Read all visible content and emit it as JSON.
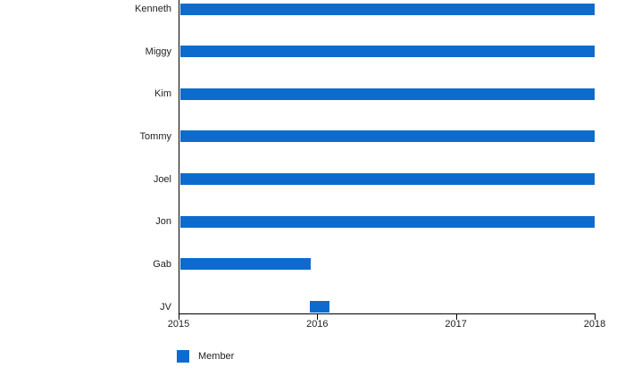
{
  "chart_data": {
    "type": "bar",
    "orientation": "horizontal",
    "title": "",
    "xlabel": "",
    "ylabel": "",
    "categories": [
      "Kenneth",
      "Miggy",
      "Kim",
      "Tommy",
      "Joel",
      "Jon",
      "Gab",
      "JV"
    ],
    "xlim": [
      2015,
      2018
    ],
    "x_ticks": [
      "2015",
      "2016",
      "2017",
      "2018"
    ],
    "grid": false,
    "legend_position": "bottom-left",
    "bar_color": "#0d6bcd",
    "axis_color": "#000000",
    "series": [
      {
        "name": "Member",
        "color": "#0d6bcd",
        "ranges": [
          {
            "member": "Kenneth",
            "start": 2015.01,
            "end": 2018.0
          },
          {
            "member": "Miggy",
            "start": 2015.01,
            "end": 2018.0
          },
          {
            "member": "Kim",
            "start": 2015.01,
            "end": 2018.0
          },
          {
            "member": "Tommy",
            "start": 2015.01,
            "end": 2018.0
          },
          {
            "member": "Joel",
            "start": 2015.01,
            "end": 2018.0
          },
          {
            "member": "Jon",
            "start": 2015.01,
            "end": 2018.0
          },
          {
            "member": "Gab",
            "start": 2015.01,
            "end": 2015.95
          },
          {
            "member": "JV",
            "start": 2015.945,
            "end": 2016.09
          }
        ]
      }
    ],
    "legend": [
      {
        "label": "Member",
        "color": "#0d6bcd"
      }
    ]
  }
}
